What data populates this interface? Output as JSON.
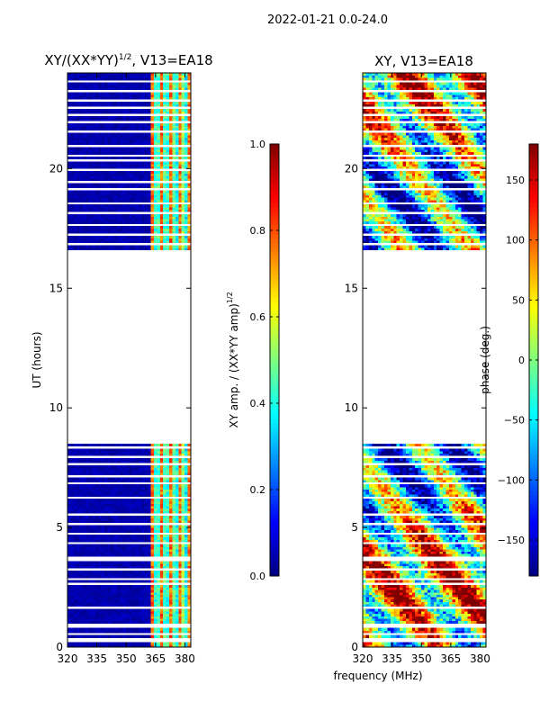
{
  "figure": {
    "suptitle": "2022-01-21 0.0-24.0",
    "shared_xlabel": "frequency (MHz)"
  },
  "colors": {
    "jet": [
      "#00007f",
      "#0000ff",
      "#007fff",
      "#00ffff",
      "#7fff7f",
      "#ffff00",
      "#ff7f00",
      "#ff0000",
      "#7f0000"
    ],
    "background": "#ffffff",
    "axis": "#000000"
  },
  "chart_data": [
    {
      "type": "heatmap",
      "title_text": "XY/(XX*YY)",
      "title_sup": "1/2",
      "title_suffix": ", V13=EA18",
      "xlabel": "",
      "ylabel": "UT (hours)",
      "xlim": [
        320,
        383
      ],
      "ylim": [
        0,
        24
      ],
      "xticks": [
        320,
        335,
        350,
        365,
        380
      ],
      "yticks": [
        0,
        5,
        10,
        15,
        20
      ],
      "data_gap_hours": [
        8.45,
        16.55
      ],
      "colorbar": {
        "label_text": "XY amp. / (XX*YY amp)",
        "label_sup": "1/2",
        "range": [
          0.0,
          1.0
        ],
        "ticks": [
          0.0,
          0.2,
          0.4,
          0.6,
          0.8,
          1.0
        ],
        "tick_labels": [
          "0.0",
          "0.2",
          "0.4",
          "0.6",
          "0.8",
          "1.0"
        ]
      }
    },
    {
      "type": "heatmap",
      "title_text": "XY, V13=EA18",
      "xlabel": "",
      "ylabel": "",
      "xlim": [
        320,
        383
      ],
      "ylim": [
        0,
        24
      ],
      "xticks": [
        320,
        335,
        350,
        365,
        380
      ],
      "yticks": [
        0,
        5,
        10,
        15,
        20
      ],
      "data_gap_hours": [
        8.45,
        16.55
      ],
      "colorbar": {
        "label_text": "phase (deg.)",
        "range": [
          -180,
          180
        ],
        "ticks": [
          -150,
          -100,
          -50,
          0,
          50,
          100,
          150
        ],
        "tick_labels": [
          "−150",
          "−100",
          "−50",
          "0",
          "50",
          "100",
          "150"
        ]
      }
    }
  ]
}
